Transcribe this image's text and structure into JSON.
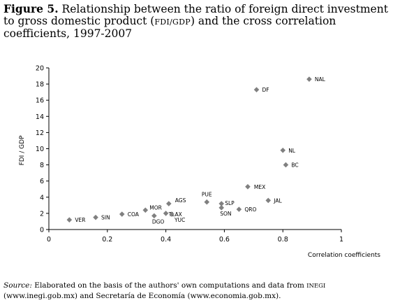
{
  "title": {
    "figure": "Figure 5.",
    "text_a": " Relationship between the ratio of foreign direct investment to gross domestic product (",
    "abbr": "FDI/GDP",
    "text_b": ") and the cross correlation coefficients, 1997-2007"
  },
  "source": {
    "label": "Source:",
    "text_a": " Elaborated on the basis of the authors' own computations and data from ",
    "inegi": "INEGI",
    "link1": " (www.inegi.gob.mx)",
    "text_b": " and Secretaría de Economía ",
    "link2": "(www.economia.gob.mx)."
  },
  "colors": {
    "marker": "#808080",
    "axis": "#000000"
  },
  "chart_data": {
    "type": "scatter",
    "xlabel": "Correlation coefficients",
    "ylabel": "FDI / GDP",
    "xlim": [
      0,
      1
    ],
    "ylim": [
      0,
      20
    ],
    "xticks": [
      "0",
      "0.2",
      "0.4",
      "0.6",
      "0.8",
      "1"
    ],
    "xtick_values": [
      0,
      0.2,
      0.4,
      0.6,
      0.8,
      1
    ],
    "yticks": [
      "0",
      "2",
      "4",
      "6",
      "8",
      "10",
      "12",
      "14",
      "16",
      "18",
      "20"
    ],
    "ytick_values": [
      0,
      2,
      4,
      6,
      8,
      10,
      12,
      14,
      16,
      18,
      20
    ],
    "grid": false,
    "points": [
      {
        "label": "VER",
        "x": 0.07,
        "y": 1.2
      },
      {
        "label": "SIN",
        "x": 0.16,
        "y": 1.5
      },
      {
        "label": "COA",
        "x": 0.25,
        "y": 1.9
      },
      {
        "label": "MOR",
        "x": 0.33,
        "y": 2.4
      },
      {
        "label": "DGO",
        "x": 0.36,
        "y": 1.7
      },
      {
        "label": "TLAX",
        "x": 0.4,
        "y": 2.0
      },
      {
        "label": "YUC",
        "x": 0.42,
        "y": 1.9
      },
      {
        "label": "AGS",
        "x": 0.41,
        "y": 3.2
      },
      {
        "label": "PUE",
        "x": 0.54,
        "y": 3.4
      },
      {
        "label": "SLP",
        "x": 0.59,
        "y": 3.2
      },
      {
        "label": "SON",
        "x": 0.59,
        "y": 2.7
      },
      {
        "label": "QRO",
        "x": 0.65,
        "y": 2.5
      },
      {
        "label": "MEX",
        "x": 0.68,
        "y": 5.3
      },
      {
        "label": "JAL",
        "x": 0.75,
        "y": 3.6
      },
      {
        "label": "DF",
        "x": 0.71,
        "y": 17.3
      },
      {
        "label": "NL",
        "x": 0.8,
        "y": 9.8
      },
      {
        "label": "BC",
        "x": 0.81,
        "y": 8.0
      },
      {
        "label": "NAL",
        "x": 0.89,
        "y": 18.6
      }
    ]
  }
}
